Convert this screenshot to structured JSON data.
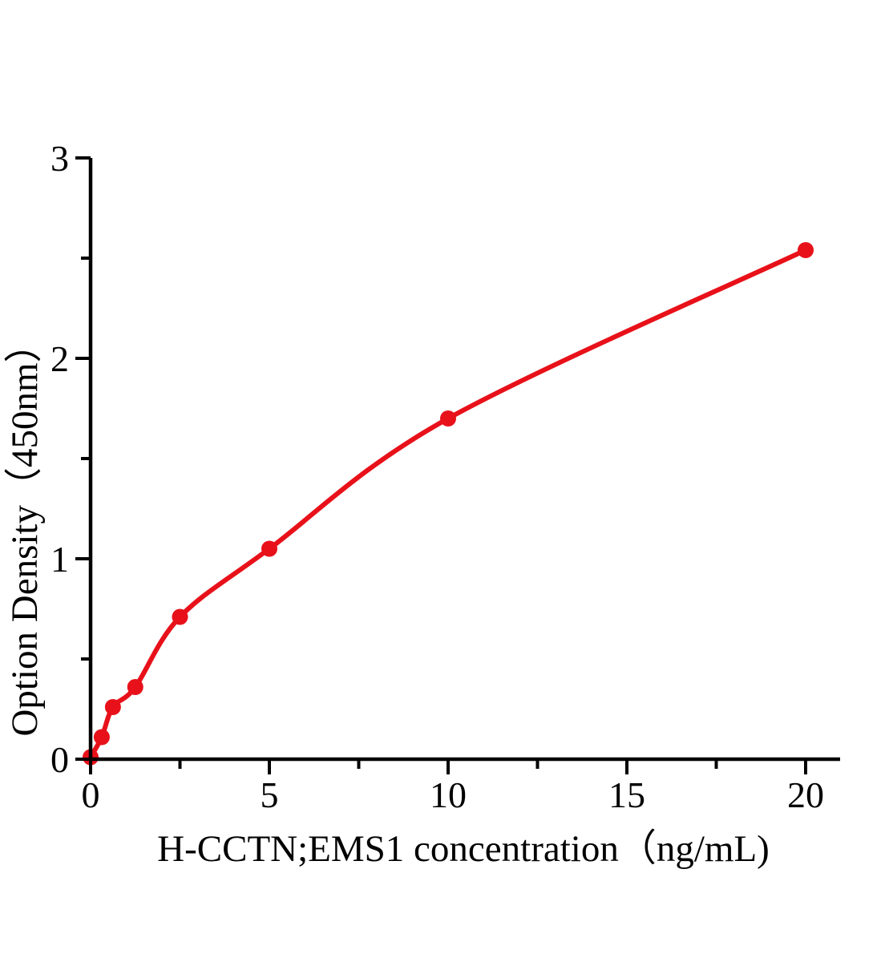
{
  "figure": {
    "background_color": "#ffffff",
    "description": "ELISA standard curve, single red series on white background, no title, no legend, no grid"
  },
  "chart_data": {
    "type": "scatter",
    "line_style": "smooth-fit-curve",
    "x": [
      0,
      0.312,
      0.625,
      1.25,
      2.5,
      5,
      10,
      20
    ],
    "y": [
      0.01,
      0.11,
      0.26,
      0.36,
      0.71,
      1.05,
      1.7,
      2.54
    ],
    "title": "",
    "xlabel": "H-CCTN;EMS1 concentration（ng/mL)",
    "ylabel": "Option Density（450nm）",
    "xlim": [
      0,
      21
    ],
    "ylim": [
      0,
      3
    ],
    "xticks_major": [
      0,
      5,
      10,
      15,
      20
    ],
    "xticks_minor": [
      2.5,
      7.5,
      12.5,
      17.5
    ],
    "yticks_major": [
      0,
      1,
      2,
      3
    ],
    "yticks_minor": [
      0.5,
      1.5,
      2.5
    ],
    "grid": false,
    "legend": null,
    "series_color": "#e8111a",
    "axis_color": "#000000",
    "marker": "filled-circle"
  }
}
